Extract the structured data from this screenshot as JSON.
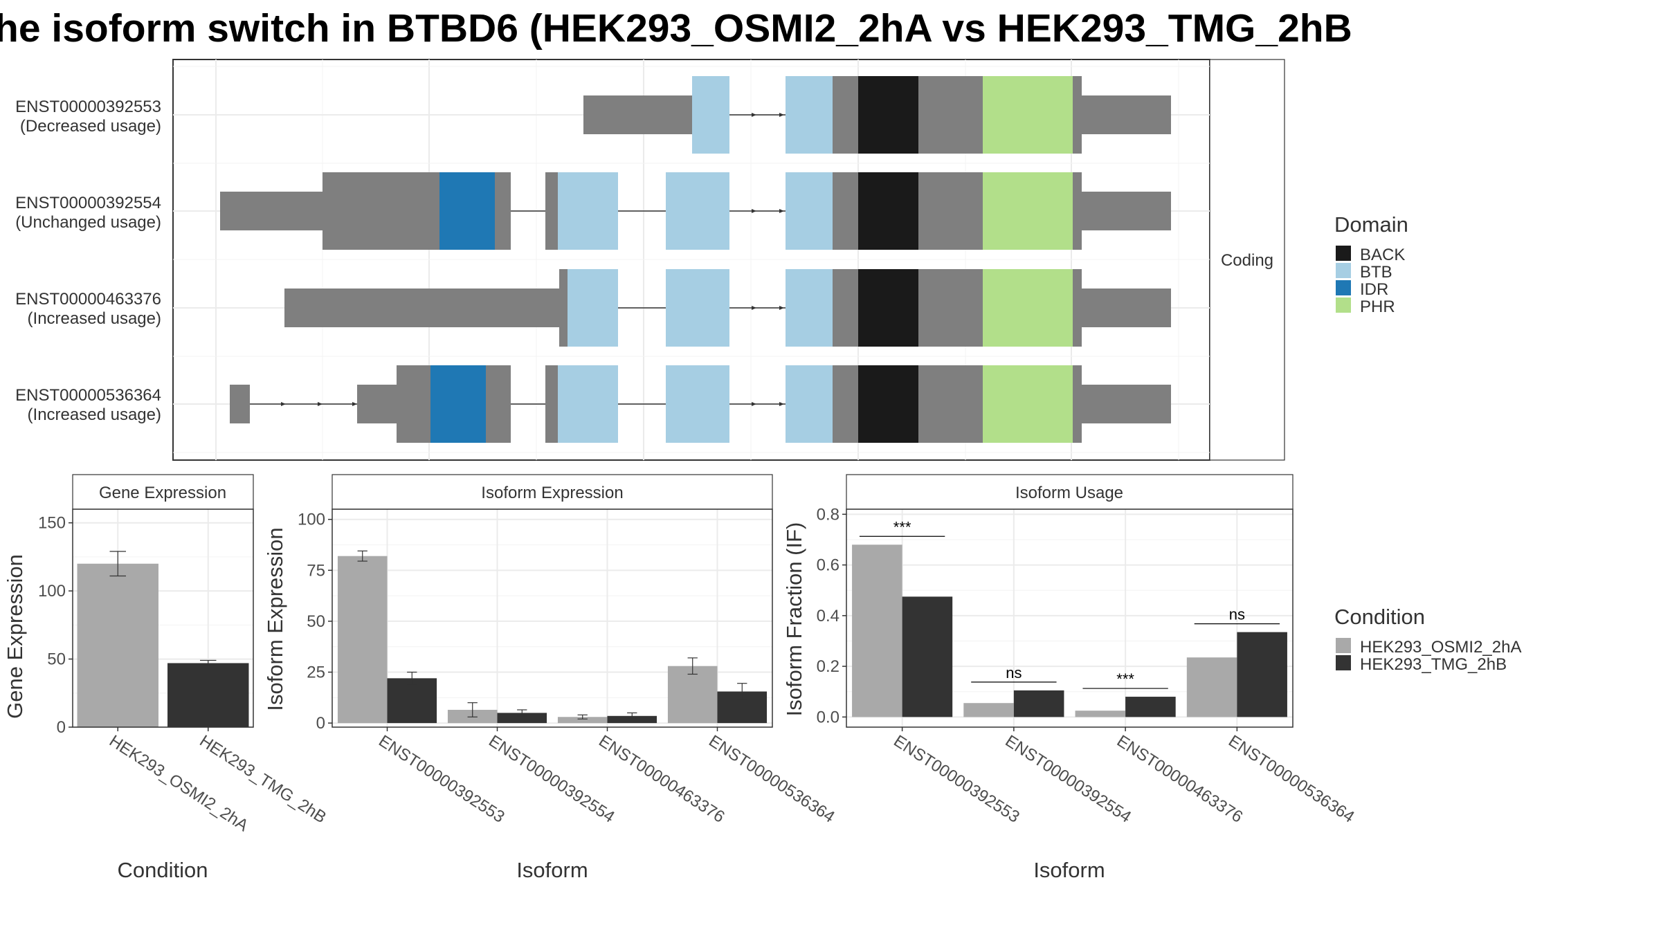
{
  "title": "he isoform switch in BTBD6 (HEK293_OSMI2_2hA vs HEK293_TMG_2hB",
  "colors": {
    "BACK": "#1a1a1a",
    "BTB": "#a6cee3",
    "IDR": "#1f78b4",
    "PHR": "#b2df8a",
    "noncoding_block": "#7f7f7f",
    "cond1": "#a9a9a9",
    "cond2": "#333333"
  },
  "structure": {
    "strip_label": "Coding",
    "transcripts": [
      {
        "id": "ENST00000392553",
        "usage": "(Decreased usage)"
      },
      {
        "id": "ENST00000392554",
        "usage": "(Unchanged usage)"
      },
      {
        "id": "ENST00000463376",
        "usage": "(Increased usage)"
      },
      {
        "id": "ENST00000536364",
        "usage": "(Increased usage)"
      }
    ]
  },
  "legends": {
    "domain_title": "Domain",
    "domain_items": [
      {
        "label": "BACK",
        "color_key": "BACK"
      },
      {
        "label": "BTB",
        "color_key": "BTB"
      },
      {
        "label": "IDR",
        "color_key": "IDR"
      },
      {
        "label": "PHR",
        "color_key": "PHR"
      }
    ],
    "condition_title": "Condition",
    "condition_items": [
      {
        "label": "HEK293_OSMI2_2hA",
        "color_key": "cond1"
      },
      {
        "label": "HEK293_TMG_2hB",
        "color_key": "cond2"
      }
    ]
  },
  "chart_data": [
    {
      "type": "bar",
      "title": "Gene Expression",
      "xlabel": "Condition",
      "ylabel": "Gene Expression",
      "ylim": [
        0,
        160
      ],
      "yticks": [
        0,
        50,
        100,
        150
      ],
      "categories": [
        "HEK293_OSMI2_2hA",
        "HEK293_TMG_2hB"
      ],
      "values": [
        120,
        47
      ],
      "errors": [
        9,
        2
      ]
    },
    {
      "type": "bar",
      "title": "Isoform Expression",
      "xlabel": "Isoform",
      "ylabel": "Isoform Expression",
      "ylim": [
        -2,
        105
      ],
      "yticks": [
        0,
        25,
        50,
        75,
        100
      ],
      "categories": [
        "ENST00000392553",
        "ENST00000392554",
        "ENST00000463376",
        "ENST00000536364"
      ],
      "series": [
        {
          "name": "HEK293_OSMI2_2hA",
          "values": [
            82,
            6.5,
            3,
            28
          ],
          "errors": [
            2.5,
            3.5,
            1,
            4
          ]
        },
        {
          "name": "HEK293_TMG_2hB",
          "values": [
            22,
            5,
            3.5,
            15.5
          ],
          "errors": [
            3,
            1.5,
            1.5,
            4
          ]
        }
      ]
    },
    {
      "type": "bar",
      "title": "Isoform Usage",
      "xlabel": "Isoform",
      "ylabel": "Isoform Fraction (IF)",
      "ylim": [
        -0.04,
        0.82
      ],
      "yticks": [
        0.0,
        0.2,
        0.4,
        0.6,
        0.8
      ],
      "categories": [
        "ENST00000392553",
        "ENST00000392554",
        "ENST00000463376",
        "ENST00000536364"
      ],
      "series": [
        {
          "name": "HEK293_OSMI2_2hA",
          "values": [
            0.68,
            0.055,
            0.025,
            0.235
          ]
        },
        {
          "name": "HEK293_TMG_2hB",
          "values": [
            0.475,
            0.105,
            0.08,
            0.335
          ]
        }
      ],
      "significance": [
        "***",
        "ns",
        "***",
        "ns"
      ]
    }
  ]
}
